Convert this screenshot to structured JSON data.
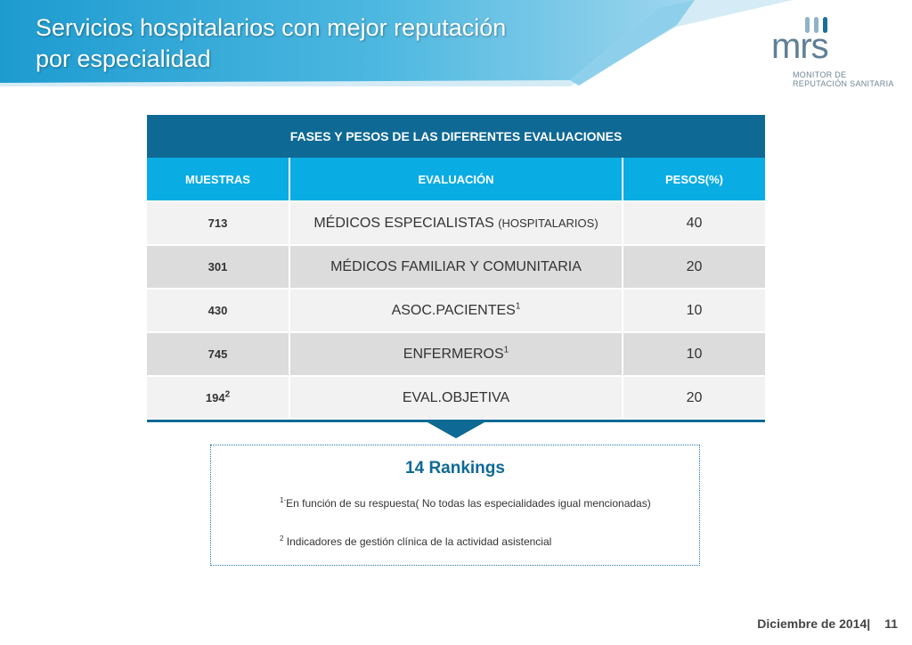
{
  "header": {
    "title_line1": "Servicios hospitalarios con mejor reputación",
    "title_line2": "por especialidad",
    "banner_colors": [
      "#2ea9d8",
      "#7fcbe8",
      "#bfe3f2"
    ]
  },
  "logo": {
    "word": "mrs",
    "subtitle_line1": "MONITOR DE",
    "subtitle_line2": "REPUTACIÓN SANITARIA"
  },
  "table": {
    "title": "FASES Y PESOS DE LAS DIFERENTES EVALUACIONES",
    "columns": [
      "MUESTRAS",
      "EVALUACIÓN",
      "PESOS(%)"
    ],
    "rows": [
      {
        "sample": "713",
        "sample_sup": "",
        "evaluation": "MÉDICOS  ESPECIALISTAS ",
        "evaluation_small": "(HOSPITALARIOS)",
        "evaluation_sup": "",
        "weight": "40"
      },
      {
        "sample": "301",
        "sample_sup": "",
        "evaluation": "MÉDICOS FAMILIAR Y COMUNITARIA",
        "evaluation_small": "",
        "evaluation_sup": "",
        "weight": "20"
      },
      {
        "sample": "430",
        "sample_sup": "",
        "evaluation": "ASOC.PACIENTES",
        "evaluation_small": "",
        "evaluation_sup": "1",
        "weight": "10"
      },
      {
        "sample": "745",
        "sample_sup": "",
        "evaluation": "ENFERMEROS",
        "evaluation_small": "",
        "evaluation_sup": "1",
        "weight": "10"
      },
      {
        "sample": "194",
        "sample_sup": "2",
        "evaluation": "EVAL.OBJETIVA",
        "evaluation_small": "",
        "evaluation_sup": "",
        "weight": "20"
      }
    ],
    "colors": {
      "title_bg": "#0e6994",
      "header_bg": "#0aace4",
      "row_light": "#f2f2f2",
      "row_dark": "#dcdcdc"
    }
  },
  "rankings": {
    "title": "14 Rankings",
    "note1_marker": "1-",
    "note1_text": "En función de su respuesta( No todas las especialidades igual mencionadas)",
    "note2_marker": "2",
    "note2_text": " Indicadores de gestión clínica de la actividad asistencial"
  },
  "footer": {
    "date": "Diciembre de 2014",
    "separator": "|",
    "page": "11"
  }
}
